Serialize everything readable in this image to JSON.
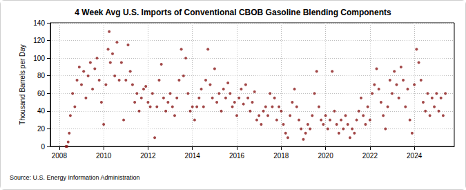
{
  "chart_data": {
    "type": "scatter",
    "title": "4 Week Avg U.S. Imports of Conventional CBOB Gasoline Blending Components",
    "y_label": "Thousand Barrels per Day",
    "source": "Source: U.S. Energy Information Administration",
    "color": "#8b1a1a",
    "marker": "circle",
    "grid": true,
    "xlim": [
      2007.6,
      2025.8
    ],
    "xticks": [
      2008,
      2010,
      2012,
      2014,
      2016,
      2018,
      2020,
      2022,
      2024
    ],
    "ylim": [
      0,
      140
    ],
    "yticks": [
      0,
      20,
      40,
      60,
      80,
      100,
      120,
      140
    ],
    "x": [
      2008.3,
      2008.35,
      2008.4,
      2008.45,
      2008.5,
      2008.6,
      2008.7,
      2008.8,
      2008.9,
      2009.0,
      2009.1,
      2009.2,
      2009.3,
      2009.4,
      2009.5,
      2009.6,
      2009.7,
      2009.8,
      2009.9,
      2010.0,
      2010.1,
      2010.2,
      2010.25,
      2010.3,
      2010.4,
      2010.5,
      2010.6,
      2010.7,
      2010.8,
      2010.9,
      2011.0,
      2011.1,
      2011.2,
      2011.3,
      2011.4,
      2011.5,
      2011.6,
      2011.7,
      2011.8,
      2011.9,
      2012.0,
      2012.1,
      2012.2,
      2012.3,
      2012.4,
      2012.5,
      2012.6,
      2012.7,
      2012.8,
      2012.9,
      2013.0,
      2013.1,
      2013.2,
      2013.3,
      2013.4,
      2013.5,
      2013.6,
      2013.7,
      2013.8,
      2013.9,
      2014.0,
      2014.1,
      2014.2,
      2014.3,
      2014.4,
      2014.5,
      2014.6,
      2014.7,
      2014.8,
      2014.9,
      2015.0,
      2015.1,
      2015.2,
      2015.3,
      2015.4,
      2015.5,
      2015.6,
      2015.7,
      2015.8,
      2015.9,
      2016.0,
      2016.1,
      2016.2,
      2016.3,
      2016.4,
      2016.5,
      2016.6,
      2016.7,
      2016.8,
      2016.9,
      2017.0,
      2017.1,
      2017.2,
      2017.3,
      2017.4,
      2017.5,
      2017.6,
      2017.7,
      2017.8,
      2017.9,
      2018.0,
      2018.1,
      2018.2,
      2018.3,
      2018.4,
      2018.5,
      2018.6,
      2018.7,
      2018.8,
      2018.9,
      2019.0,
      2019.1,
      2019.2,
      2019.3,
      2019.4,
      2019.5,
      2019.6,
      2019.7,
      2019.8,
      2019.9,
      2020.0,
      2020.1,
      2020.2,
      2020.3,
      2020.4,
      2020.5,
      2020.6,
      2020.7,
      2020.8,
      2020.9,
      2021.0,
      2021.1,
      2021.2,
      2021.3,
      2021.4,
      2021.5,
      2021.6,
      2021.7,
      2021.8,
      2021.9,
      2022.0,
      2022.1,
      2022.2,
      2022.3,
      2022.4,
      2022.5,
      2022.6,
      2022.7,
      2022.8,
      2022.9,
      2023.0,
      2023.1,
      2023.2,
      2023.3,
      2023.4,
      2023.5,
      2023.6,
      2023.7,
      2023.8,
      2023.9,
      2024.0,
      2024.1,
      2024.2,
      2024.3,
      2024.4,
      2024.5,
      2024.6,
      2024.7,
      2024.8,
      2024.9,
      2025.0,
      2025.1,
      2025.2,
      2025.3,
      2025.4
    ],
    "values": [
      0,
      0,
      5,
      15,
      35,
      60,
      45,
      75,
      90,
      70,
      85,
      55,
      80,
      95,
      65,
      88,
      100,
      75,
      50,
      25,
      70,
      110,
      130,
      95,
      105,
      80,
      118,
      75,
      95,
      30,
      75,
      115,
      85,
      70,
      50,
      60,
      40,
      55,
      65,
      68,
      50,
      45,
      60,
      10,
      45,
      75,
      93,
      55,
      40,
      50,
      60,
      45,
      35,
      55,
      75,
      110,
      80,
      100,
      60,
      40,
      45,
      30,
      45,
      55,
      65,
      45,
      75,
      110,
      70,
      55,
      88,
      50,
      60,
      40,
      65,
      55,
      72,
      60,
      45,
      50,
      35,
      55,
      65,
      48,
      70,
      55,
      40,
      50,
      62,
      30,
      35,
      25,
      40,
      45,
      35,
      60,
      45,
      55,
      30,
      45,
      40,
      25,
      15,
      10,
      35,
      50,
      65,
      45,
      30,
      20,
      8,
      15,
      25,
      20,
      35,
      60,
      85,
      45,
      30,
      25,
      35,
      20,
      30,
      85,
      40,
      25,
      15,
      30,
      20,
      35,
      25,
      10,
      20,
      15,
      30,
      40,
      55,
      35,
      25,
      45,
      30,
      60,
      70,
      88,
      65,
      50,
      35,
      20,
      45,
      75,
      60,
      85,
      70,
      55,
      90,
      75,
      45,
      65,
      30,
      15,
      70,
      110,
      95,
      75,
      50,
      40,
      60,
      35,
      55,
      45,
      60,
      40,
      55,
      35,
      60
    ]
  }
}
